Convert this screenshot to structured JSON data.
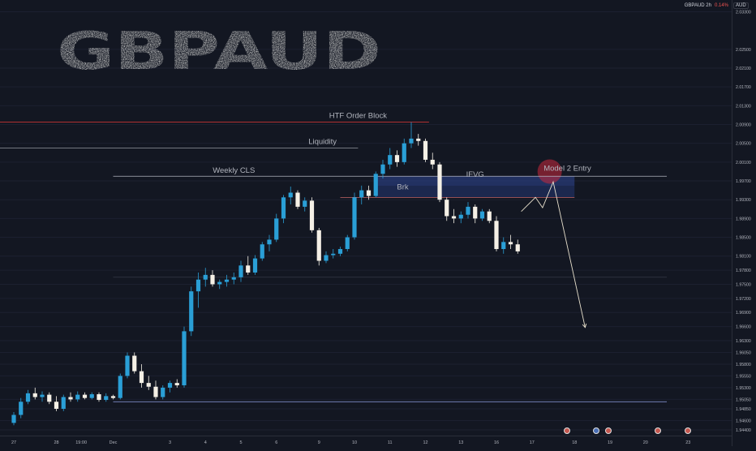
{
  "header": {
    "symbol": "GBPAUD 2h",
    "change": "0.14%",
    "currency": "AUD"
  },
  "title": "GBPAUD",
  "chart_data": {
    "type": "candlestick",
    "price_ticks": [
      "2.03300",
      "2.02500",
      "2.02100",
      "2.01700",
      "2.01300",
      "2.00900",
      "2.00500",
      "2.00100",
      "1.99700",
      "1.99300",
      "1.98900",
      "1.98500",
      "1.98100",
      "1.97800",
      "1.97500",
      "1.97200",
      "1.96900",
      "1.96600",
      "1.96300",
      "1.96050",
      "1.95800",
      "1.95550",
      "1.95300",
      "1.95050",
      "1.94850",
      "1.94600",
      "1.94400"
    ],
    "price_tick_values": [
      2.033,
      2.025,
      2.021,
      2.017,
      2.013,
      2.009,
      2.005,
      2.001,
      1.997,
      1.993,
      1.989,
      1.985,
      1.981,
      1.978,
      1.975,
      1.972,
      1.969,
      1.966,
      1.963,
      1.9605,
      1.958,
      1.9555,
      1.953,
      1.9505,
      1.9485,
      1.946,
      1.944
    ],
    "time_labels": [
      "27",
      "28",
      "19:00",
      "Dec",
      "3",
      "4",
      "5",
      "6",
      "9",
      "10",
      "11",
      "12",
      "13",
      "16",
      "17",
      "18",
      "19",
      "20",
      "23"
    ],
    "time_positions": [
      0,
      6,
      9.5,
      14,
      22,
      27,
      32,
      37,
      43,
      48,
      53,
      58,
      63,
      68,
      73,
      79,
      84,
      89,
      95
    ],
    "candles": [
      [
        0,
        1.9455,
        1.9478,
        1.945,
        1.9472
      ],
      [
        1,
        1.9472,
        1.9508,
        1.9465,
        1.95
      ],
      [
        2,
        1.95,
        1.9525,
        1.9495,
        1.9518
      ],
      [
        3,
        1.9518,
        1.953,
        1.9505,
        1.951
      ],
      [
        4,
        1.951,
        1.9522,
        1.95,
        1.9515
      ],
      [
        5,
        1.9515,
        1.952,
        1.9495,
        1.95
      ],
      [
        6,
        1.95,
        1.9512,
        1.948,
        1.9485
      ],
      [
        7,
        1.9485,
        1.9515,
        1.948,
        1.951
      ],
      [
        8,
        1.951,
        1.952,
        1.95,
        1.9505
      ],
      [
        9,
        1.9505,
        1.9522,
        1.95,
        1.9515
      ],
      [
        10,
        1.9515,
        1.952,
        1.9505,
        1.9508
      ],
      [
        11,
        1.9508,
        1.952,
        1.9505,
        1.9516
      ],
      [
        12,
        1.9516,
        1.952,
        1.95,
        1.9504
      ],
      [
        13,
        1.9504,
        1.9518,
        1.95,
        1.9512
      ],
      [
        14,
        1.9512,
        1.9515,
        1.9505,
        1.9508
      ],
      [
        15,
        1.9508,
        1.956,
        1.9505,
        1.9555
      ],
      [
        16,
        1.9555,
        1.9605,
        1.955,
        1.9598
      ],
      [
        17,
        1.9598,
        1.9605,
        1.956,
        1.9565
      ],
      [
        18,
        1.9565,
        1.958,
        1.953,
        1.954
      ],
      [
        19,
        1.954,
        1.9555,
        1.9525,
        1.9532
      ],
      [
        20,
        1.9532,
        1.9545,
        1.9505,
        1.951
      ],
      [
        21,
        1.951,
        1.9535,
        1.9505,
        1.953
      ],
      [
        22,
        1.953,
        1.9545,
        1.952,
        1.954
      ],
      [
        23,
        1.954,
        1.9548,
        1.953,
        1.9535
      ],
      [
        24,
        1.9535,
        1.966,
        1.953,
        1.965
      ],
      [
        25,
        1.965,
        1.9745,
        1.964,
        1.9735
      ],
      [
        26,
        1.9735,
        1.9775,
        1.97,
        1.976
      ],
      [
        27,
        1.976,
        1.9785,
        1.9745,
        1.977
      ],
      [
        28,
        1.977,
        1.978,
        1.9745,
        1.975
      ],
      [
        29,
        1.975,
        1.976,
        1.974,
        1.9755
      ],
      [
        30,
        1.9755,
        1.977,
        1.9745,
        1.976
      ],
      [
        31,
        1.976,
        1.9775,
        1.975,
        1.9765
      ],
      [
        32,
        1.9765,
        1.98,
        1.9755,
        1.979
      ],
      [
        33,
        1.979,
        1.981,
        1.977,
        1.9775
      ],
      [
        34,
        1.9775,
        1.9812,
        1.977,
        1.9805
      ],
      [
        35,
        1.9805,
        1.984,
        1.98,
        1.9835
      ],
      [
        36,
        1.9835,
        1.9855,
        1.982,
        1.9845
      ],
      [
        37,
        1.9845,
        1.99,
        1.984,
        1.989
      ],
      [
        38,
        1.989,
        1.994,
        1.988,
        1.9935
      ],
      [
        39,
        1.9935,
        1.9958,
        1.992,
        1.9945
      ],
      [
        40,
        1.9945,
        1.995,
        1.991,
        1.9915
      ],
      [
        41,
        1.9915,
        1.9935,
        1.9905,
        1.9928
      ],
      [
        42,
        1.9928,
        1.9935,
        1.986,
        1.9865
      ],
      [
        43,
        1.9865,
        1.987,
        1.979,
        1.98
      ],
      [
        44,
        1.98,
        1.982,
        1.9795,
        1.9812
      ],
      [
        45,
        1.9812,
        1.9825,
        1.9805,
        1.9815
      ],
      [
        46,
        1.9815,
        1.983,
        1.981,
        1.9825
      ],
      [
        47,
        1.9825,
        1.9855,
        1.982,
        1.985
      ],
      [
        48,
        1.985,
        1.9945,
        1.9845,
        1.9935
      ],
      [
        49,
        1.9935,
        1.996,
        1.992,
        1.995
      ],
      [
        50,
        1.995,
        1.996,
        1.993,
        1.9938
      ],
      [
        51,
        1.9938,
        1.999,
        1.9935,
        1.9985
      ],
      [
        52,
        1.9985,
        2.0015,
        1.9975,
        2.0005
      ],
      [
        53,
        2.0005,
        2.004,
        1.9995,
        2.0025
      ],
      [
        54,
        2.0025,
        2.0035,
        2.0,
        2.001
      ],
      [
        55,
        2.001,
        2.006,
        2.0005,
        2.005
      ],
      [
        56,
        2.005,
        2.0095,
        2.004,
        2.006
      ],
      [
        57,
        2.006,
        2.007,
        2.0045,
        2.0055
      ],
      [
        58,
        2.0055,
        2.006,
        2.001,
        2.0015
      ],
      [
        59,
        2.0015,
        2.003,
        1.9995,
        2.0005
      ],
      [
        60,
        2.0005,
        2.001,
        1.9925,
        1.993
      ],
      [
        61,
        1.993,
        1.9935,
        1.9885,
        1.9895
      ],
      [
        62,
        1.9895,
        1.991,
        1.988,
        1.989
      ],
      [
        63,
        1.989,
        1.9905,
        1.988,
        1.9898
      ],
      [
        64,
        1.9898,
        1.9925,
        1.989,
        1.9915
      ],
      [
        65,
        1.9915,
        1.992,
        1.988,
        1.989
      ],
      [
        66,
        1.989,
        1.991,
        1.9885,
        1.9905
      ],
      [
        67,
        1.9905,
        1.991,
        1.988,
        1.9885
      ],
      [
        68,
        1.9885,
        1.9895,
        1.982,
        1.9825
      ],
      [
        69,
        1.9825,
        1.985,
        1.9815,
        1.984
      ],
      [
        70,
        1.984,
        1.9855,
        1.9825,
        1.9835
      ],
      [
        71,
        1.9835,
        1.9845,
        1.9815,
        1.982
      ]
    ],
    "annotations": [
      {
        "label": "HTF Order Block",
        "price": 2.0095
      },
      {
        "label": "Liquidity",
        "price": 2.004
      },
      {
        "label": "Weekly CLS",
        "price": 1.998
      },
      {
        "label": "IFVG",
        "low": 1.9935,
        "high": 1.998
      },
      {
        "label": "Brk",
        "price": 1.9955
      },
      {
        "label": "Model 2 Entry",
        "price": 1.999
      }
    ],
    "levels": [
      1.9765,
      1.95
    ],
    "projection_prices": [
      1.9905,
      1.9935,
      1.9913,
      1.9968,
      1.9658
    ]
  },
  "theme": {
    "up": "#2a9fd6",
    "down": "#f5f0e6",
    "bg": "#131722"
  }
}
